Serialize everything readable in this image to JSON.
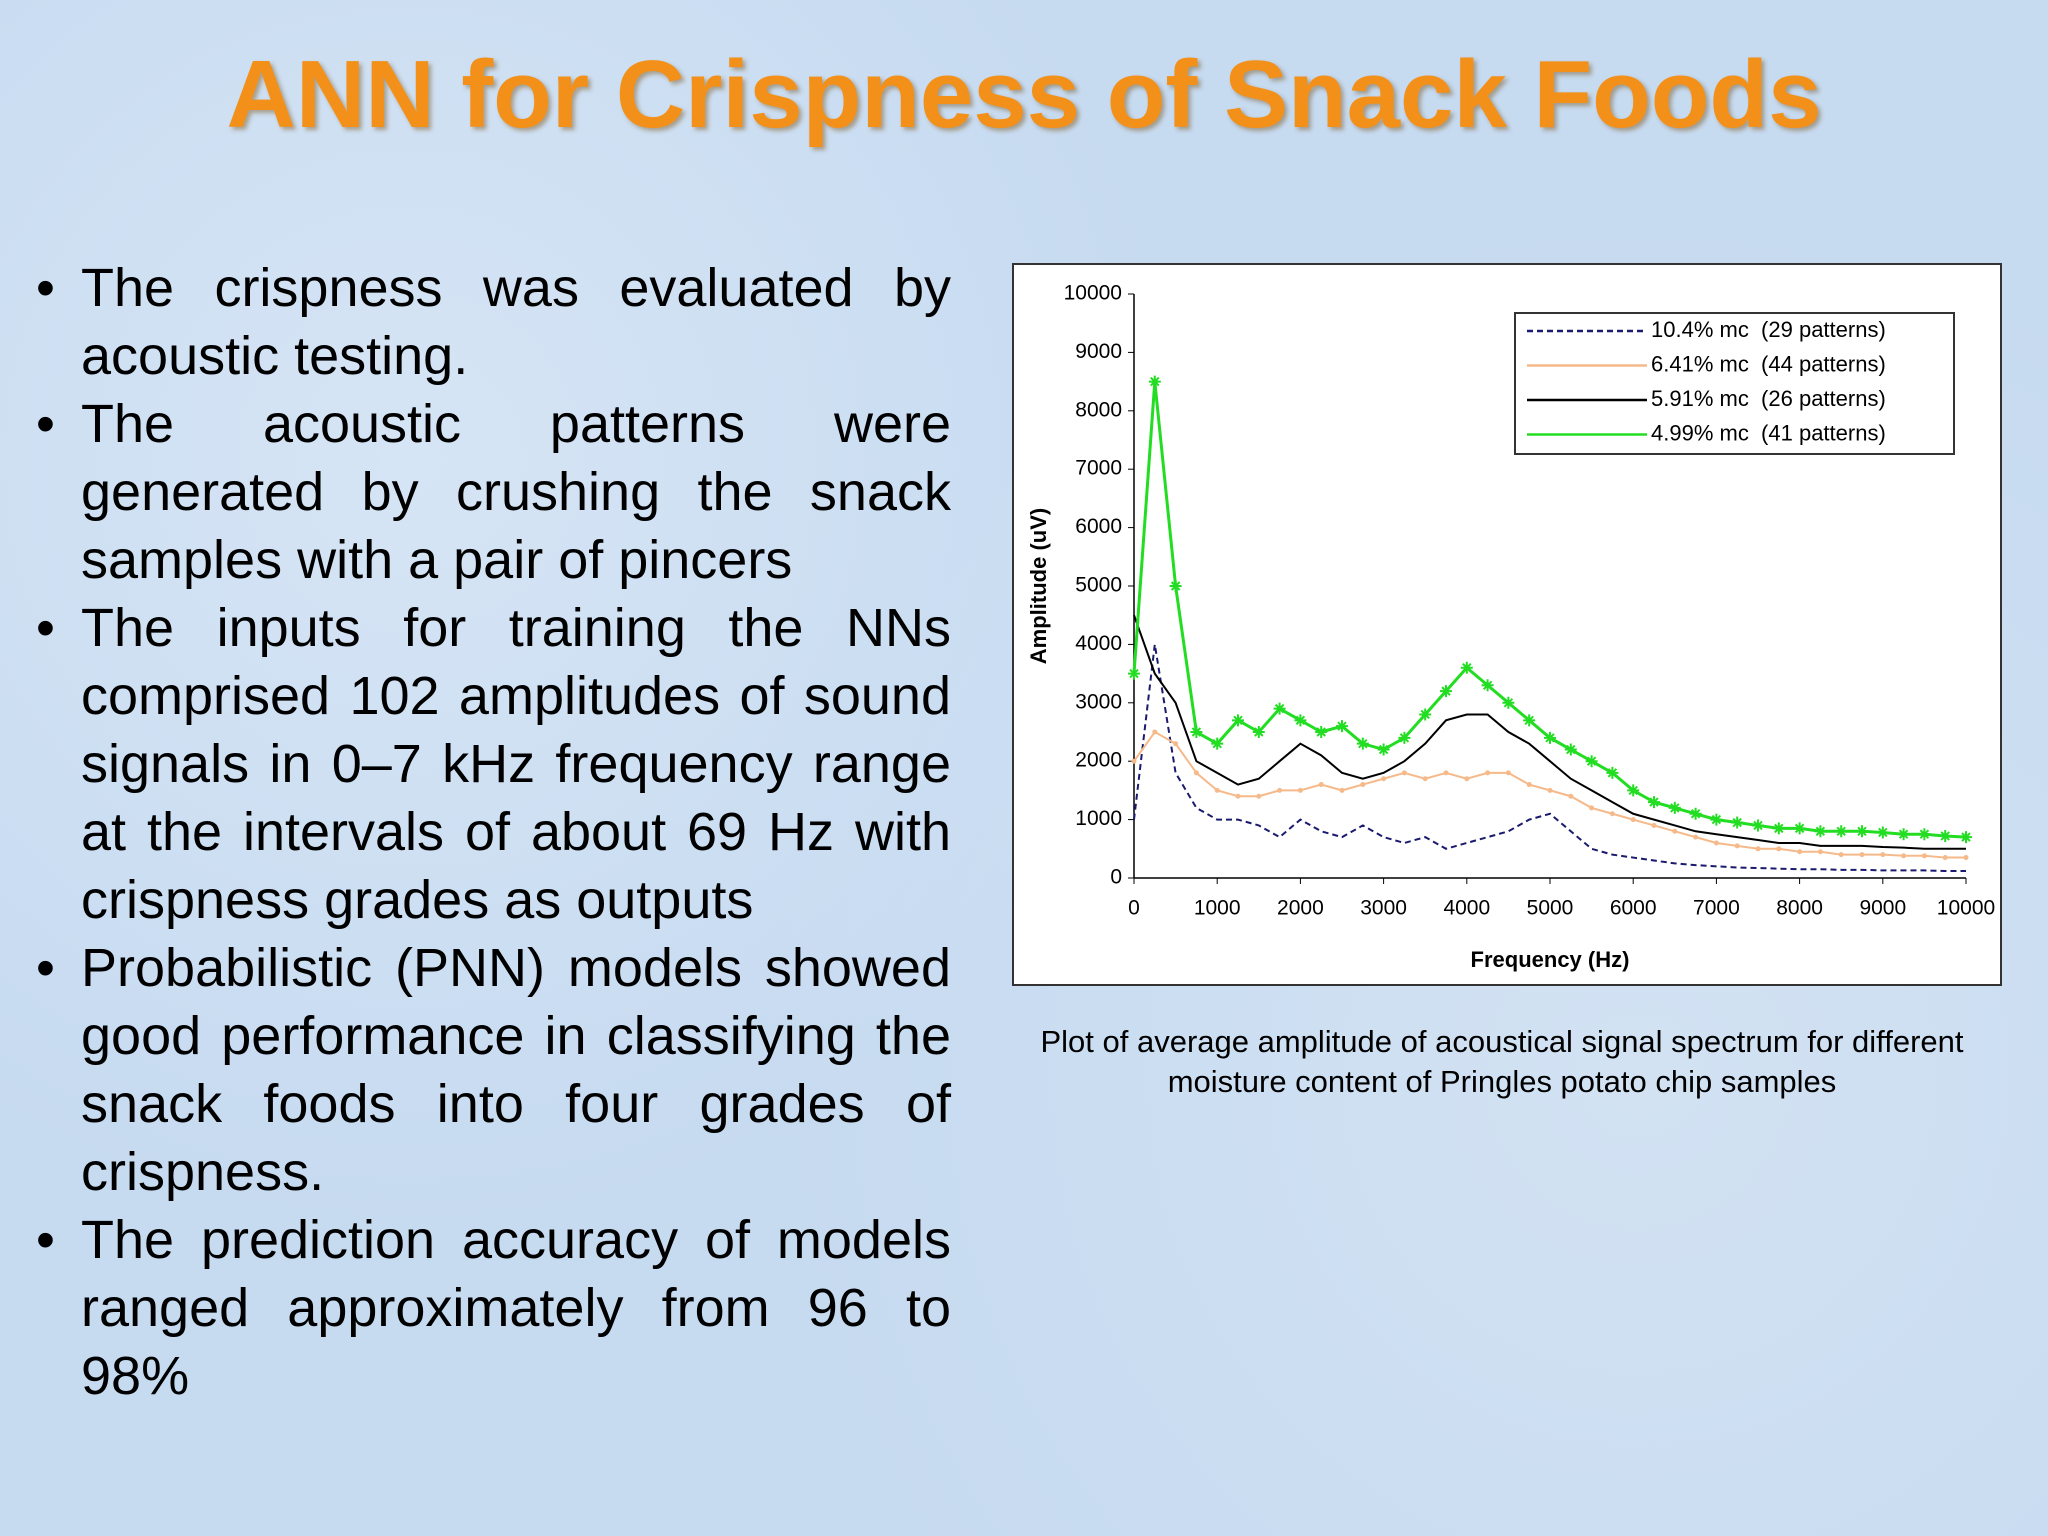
{
  "title": "ANN for Crispness of Snack Foods",
  "bullets": [
    "The crispness was evaluated by acoustic testing.",
    "The acoustic patterns were generated by crushing the snack samples with a pair of pincers",
    "The inputs for training the NNs comprised 102 amplitudes of sound signals in 0–7 kHz frequency range at the intervals of about 69 Hz with crispness grades as outputs",
    "Probabilistic (PNN) models showed good performance in classifying the snack foods into four grades of crispness.",
    "The prediction accuracy of models ranged approximately from 96 to 98%"
  ],
  "caption": "Plot of average amplitude of acoustical signal spectrum for different moisture content of Pringles potato chip samples",
  "chart_data": {
    "type": "line",
    "xlabel": "Frequency (Hz)",
    "ylabel": "Amplitude (uV)",
    "x": [
      0,
      250,
      500,
      750,
      1000,
      1250,
      1500,
      1750,
      2000,
      2250,
      2500,
      2750,
      3000,
      3250,
      3500,
      3750,
      4000,
      4250,
      4500,
      4750,
      5000,
      5250,
      5500,
      5750,
      6000,
      6250,
      6500,
      6750,
      7000,
      7250,
      7500,
      7750,
      8000,
      8250,
      8500,
      8750,
      9000,
      9250,
      9500,
      9750,
      10000
    ],
    "xlim": [
      0,
      10000
    ],
    "ylim": [
      0,
      10000
    ],
    "xticks": [
      0,
      1000,
      2000,
      3000,
      4000,
      5000,
      6000,
      7000,
      8000,
      9000,
      10000
    ],
    "yticks": [
      0,
      1000,
      2000,
      3000,
      4000,
      5000,
      6000,
      7000,
      8000,
      9000,
      10000
    ],
    "legend": "upper right",
    "series": [
      {
        "name": "10.4% mc  (29 patterns)",
        "color": "#1a1a6e",
        "line_style": "dotted",
        "marker": "none",
        "values": [
          1000,
          4000,
          1800,
          1200,
          1000,
          1000,
          900,
          700,
          1000,
          800,
          700,
          900,
          700,
          600,
          700,
          500,
          600,
          700,
          800,
          1000,
          1100,
          800,
          500,
          400,
          350,
          300,
          250,
          220,
          200,
          180,
          170,
          160,
          150,
          150,
          140,
          140,
          130,
          130,
          130,
          120,
          120
        ]
      },
      {
        "name": "6.41% mc  (44 patterns)",
        "color": "#f5b98a",
        "line_style": "solid",
        "marker": "dot",
        "values": [
          2000,
          2500,
          2300,
          1800,
          1500,
          1400,
          1400,
          1500,
          1500,
          1600,
          1500,
          1600,
          1700,
          1800,
          1700,
          1800,
          1700,
          1800,
          1800,
          1600,
          1500,
          1400,
          1200,
          1100,
          1000,
          900,
          800,
          700,
          600,
          550,
          500,
          500,
          450,
          450,
          400,
          400,
          400,
          380,
          380,
          350,
          350
        ]
      },
      {
        "name": "5.91% mc  (26 patterns)",
        "color": "#000000",
        "line_style": "solid",
        "marker": "none",
        "values": [
          4500,
          3500,
          3000,
          2000,
          1800,
          1600,
          1700,
          2000,
          2300,
          2100,
          1800,
          1700,
          1800,
          2000,
          2300,
          2700,
          2800,
          2800,
          2500,
          2300,
          2000,
          1700,
          1500,
          1300,
          1100,
          1000,
          900,
          800,
          750,
          700,
          650,
          600,
          600,
          550,
          550,
          550,
          530,
          520,
          500,
          500,
          500
        ]
      },
      {
        "name": "4.99% mc  (41 patterns)",
        "color": "#22dd22",
        "line_style": "solid",
        "marker": "star",
        "values": [
          3500,
          8500,
          5000,
          2500,
          2300,
          2700,
          2500,
          2900,
          2700,
          2500,
          2600,
          2300,
          2200,
          2400,
          2800,
          3200,
          3600,
          3300,
          3000,
          2700,
          2400,
          2200,
          2000,
          1800,
          1500,
          1300,
          1200,
          1100,
          1000,
          950,
          900,
          850,
          850,
          800,
          800,
          800,
          780,
          750,
          750,
          720,
          700
        ]
      }
    ]
  }
}
